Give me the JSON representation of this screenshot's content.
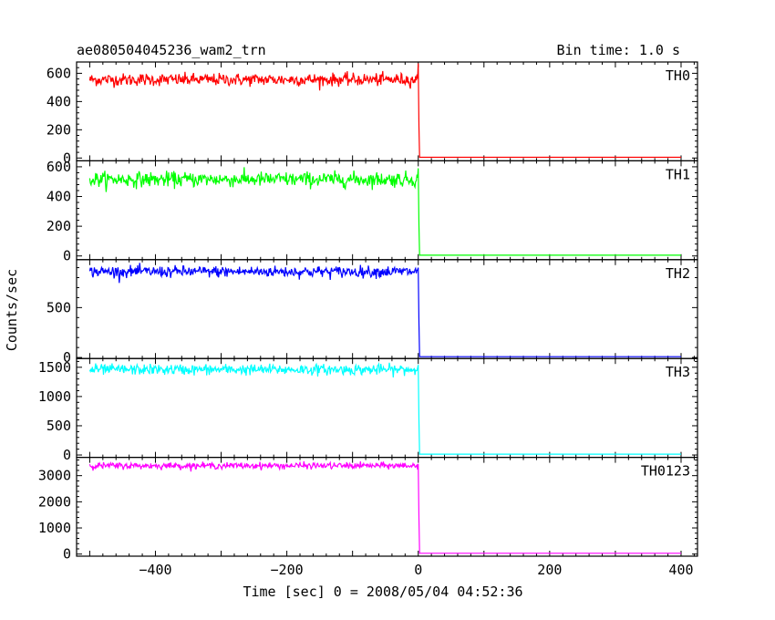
{
  "header": {
    "title": "ae080504045236_wam2_trn",
    "bin_time": "Bin time: 1.0 s"
  },
  "chart_data": {
    "type": "line",
    "title": "ae080504045236_wam2_trn",
    "subtitle": "Bin time: 1.0 s",
    "xlabel": "Time [sec] 0 = 2008/05/04 04:52:36",
    "ylabel": "Counts/sec",
    "xlim": [
      -520,
      425
    ],
    "x_ticks": [
      -400,
      -200,
      0,
      200,
      400
    ],
    "x_tick_labels": [
      "−400",
      "−200",
      "0",
      "200",
      "400"
    ],
    "grid": false,
    "panels": [
      {
        "name": "TH0",
        "color": "#ff0000",
        "ylim": [
          -20,
          680
        ],
        "y_ticks": [
          0,
          200,
          400,
          600
        ],
        "y_tick_labels": [
          "0",
          "200",
          "400",
          "600"
        ],
        "baseline_mean": 555,
        "baseline_noise": 22,
        "spike_value": 670,
        "post_level": 5,
        "x_start": -500,
        "x_drop": 0,
        "x_end": 400
      },
      {
        "name": "TH1",
        "color": "#00ff00",
        "ylim": [
          -25,
          640
        ],
        "y_ticks": [
          0,
          200,
          400,
          600
        ],
        "y_tick_labels": [
          "0",
          "200",
          "400",
          "600"
        ],
        "baseline_mean": 515,
        "baseline_noise": 25,
        "spike_value": 590,
        "post_level": 5,
        "x_start": -500,
        "x_drop": 0,
        "x_end": 400
      },
      {
        "name": "TH2",
        "color": "#0000ff",
        "ylim": [
          -10,
          980
        ],
        "y_ticks": [
          0,
          500
        ],
        "y_tick_labels": [
          "0",
          "500"
        ],
        "baseline_mean": 860,
        "baseline_noise": 28,
        "spike_value": 900,
        "post_level": 8,
        "x_start": -500,
        "x_drop": 0,
        "x_end": 400
      },
      {
        "name": "TH3",
        "color": "#00ffff",
        "ylim": [
          -40,
          1650
        ],
        "y_ticks": [
          0,
          500,
          1000,
          1500
        ],
        "y_tick_labels": [
          "0",
          "500",
          "1000",
          "1500"
        ],
        "baseline_mean": 1460,
        "baseline_noise": 45,
        "spike_value": 1540,
        "post_level": 15,
        "x_start": -500,
        "x_drop": 0,
        "x_end": 400
      },
      {
        "name": "TH0123",
        "color": "#ff00ff",
        "ylim": [
          -80,
          3700
        ],
        "y_ticks": [
          0,
          1000,
          2000,
          3000
        ],
        "y_tick_labels": [
          "0",
          "1000",
          "2000",
          "3000"
        ],
        "baseline_mean": 3380,
        "baseline_noise": 60,
        "spike_value": 3450,
        "post_level": 30,
        "x_start": -500,
        "x_drop": 0,
        "x_end": 400
      }
    ]
  }
}
